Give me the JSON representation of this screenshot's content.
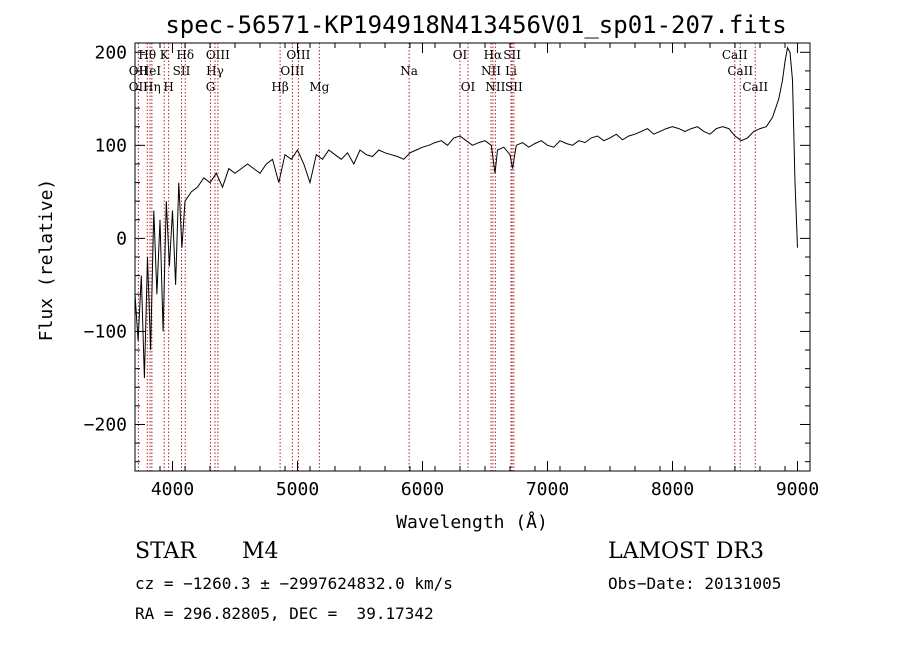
{
  "chart_data": {
    "type": "line",
    "title": "spec-56571-KP194918N413456V01_sp01-207.fits",
    "xlabel": "Wavelength (Å)",
    "ylabel": "Flux (relative)",
    "xlim": [
      3700,
      9100
    ],
    "ylim": [
      -250,
      210
    ],
    "xticks": [
      4000,
      5000,
      6000,
      7000,
      8000,
      9000
    ],
    "yticks": [
      -200,
      -100,
      0,
      100,
      200
    ],
    "spectral_lines": [
      {
        "label": "OII",
        "x": 3727,
        "row": 2
      },
      {
        "label": "OII",
        "x": 3727,
        "row": 3
      },
      {
        "label": "Hθ",
        "x": 3798,
        "row": 1
      },
      {
        "label": "HeI",
        "x": 3820,
        "row": 2
      },
      {
        "label": "Hη",
        "x": 3835,
        "row": 3
      },
      {
        "label": "K",
        "x": 3934,
        "row": 1
      },
      {
        "label": "SII",
        "x": 4072,
        "row": 2
      },
      {
        "label": "H",
        "x": 3969,
        "row": 3
      },
      {
        "label": "Hδ",
        "x": 4102,
        "row": 1
      },
      {
        "label": "OIII",
        "x": 4363,
        "row": 1
      },
      {
        "label": "Hγ",
        "x": 4340,
        "row": 2
      },
      {
        "label": "G",
        "x": 4304,
        "row": 3
      },
      {
        "label": "Hβ",
        "x": 4861,
        "row": 3
      },
      {
        "label": "OIII",
        "x": 5007,
        "row": 1
      },
      {
        "label": "OIII",
        "x": 4959,
        "row": 2
      },
      {
        "label": "Mg",
        "x": 5175,
        "row": 3
      },
      {
        "label": "Na",
        "x": 5893,
        "row": 2
      },
      {
        "label": "OI",
        "x": 6300,
        "row": 1
      },
      {
        "label": "OI",
        "x": 6364,
        "row": 3
      },
      {
        "label": "Hα",
        "x": 6563,
        "row": 1
      },
      {
        "label": "SII",
        "x": 6717,
        "row": 1
      },
      {
        "label": "NII",
        "x": 6548,
        "row": 2
      },
      {
        "label": "Li",
        "x": 6708,
        "row": 2
      },
      {
        "label": "NII",
        "x": 6583,
        "row": 3
      },
      {
        "label": "SII",
        "x": 6731,
        "row": 3
      },
      {
        "label": "CaII",
        "x": 8498,
        "row": 1
      },
      {
        "label": "CaII",
        "x": 8542,
        "row": 2
      },
      {
        "label": "CaII",
        "x": 8662,
        "row": 3
      }
    ],
    "series": [
      {
        "x": [
          3700,
          3725,
          3750,
          3775,
          3800,
          3825,
          3850,
          3875,
          3900,
          3925,
          3950,
          3975,
          4000,
          4025,
          4050,
          4075,
          4100,
          4150,
          4200,
          4250,
          4300,
          4350,
          4400,
          4450,
          4500,
          4550,
          4600,
          4650,
          4700,
          4750,
          4800,
          4850,
          4900,
          4950,
          5000,
          5050,
          5100,
          5150,
          5200,
          5250,
          5300,
          5350,
          5400,
          5450,
          5500,
          5550,
          5600,
          5650,
          5700,
          5750,
          5800,
          5850,
          5900,
          5950,
          6000,
          6050,
          6100,
          6150,
          6200,
          6250,
          6300,
          6350,
          6400,
          6450,
          6500,
          6550,
          6580,
          6600,
          6650,
          6700,
          6720,
          6750,
          6800,
          6850,
          6900,
          6950,
          7000,
          7050,
          7100,
          7150,
          7200,
          7250,
          7300,
          7350,
          7400,
          7450,
          7500,
          7550,
          7600,
          7650,
          7700,
          7750,
          7800,
          7850,
          7900,
          7950,
          8000,
          8050,
          8100,
          8150,
          8200,
          8250,
          8300,
          8350,
          8400,
          8450,
          8500,
          8550,
          8600,
          8650,
          8700,
          8750,
          8800,
          8850,
          8880,
          8900,
          8920,
          8940,
          8960,
          8980,
          9000
        ],
        "y": [
          -60,
          -110,
          -40,
          -150,
          -20,
          -120,
          30,
          -60,
          20,
          -100,
          40,
          -30,
          30,
          -50,
          60,
          -10,
          40,
          50,
          55,
          65,
          60,
          70,
          55,
          75,
          70,
          75,
          80,
          75,
          70,
          80,
          85,
          60,
          90,
          85,
          95,
          80,
          60,
          90,
          85,
          95,
          90,
          85,
          92,
          80,
          95,
          90,
          88,
          95,
          92,
          90,
          88,
          85,
          92,
          95,
          98,
          100,
          103,
          105,
          100,
          108,
          110,
          105,
          100,
          103,
          105,
          100,
          70,
          95,
          98,
          90,
          75,
          100,
          103,
          98,
          102,
          105,
          100,
          98,
          105,
          102,
          100,
          105,
          103,
          108,
          110,
          105,
          108,
          112,
          106,
          110,
          112,
          115,
          118,
          112,
          115,
          118,
          120,
          118,
          115,
          118,
          120,
          115,
          112,
          118,
          120,
          118,
          110,
          105,
          108,
          115,
          118,
          120,
          130,
          150,
          170,
          190,
          205,
          200,
          170,
          60,
          -10
        ]
      }
    ]
  },
  "info": {
    "class_label": "STAR",
    "subclass": "M4",
    "survey": "LAMOST DR3",
    "cz_line": "cz = −1260.3 ± −2997624832.0 km/s",
    "obs_date": "Obs−Date: 20131005",
    "radec": "RA = 296.82805, DEC =  39.17342"
  }
}
